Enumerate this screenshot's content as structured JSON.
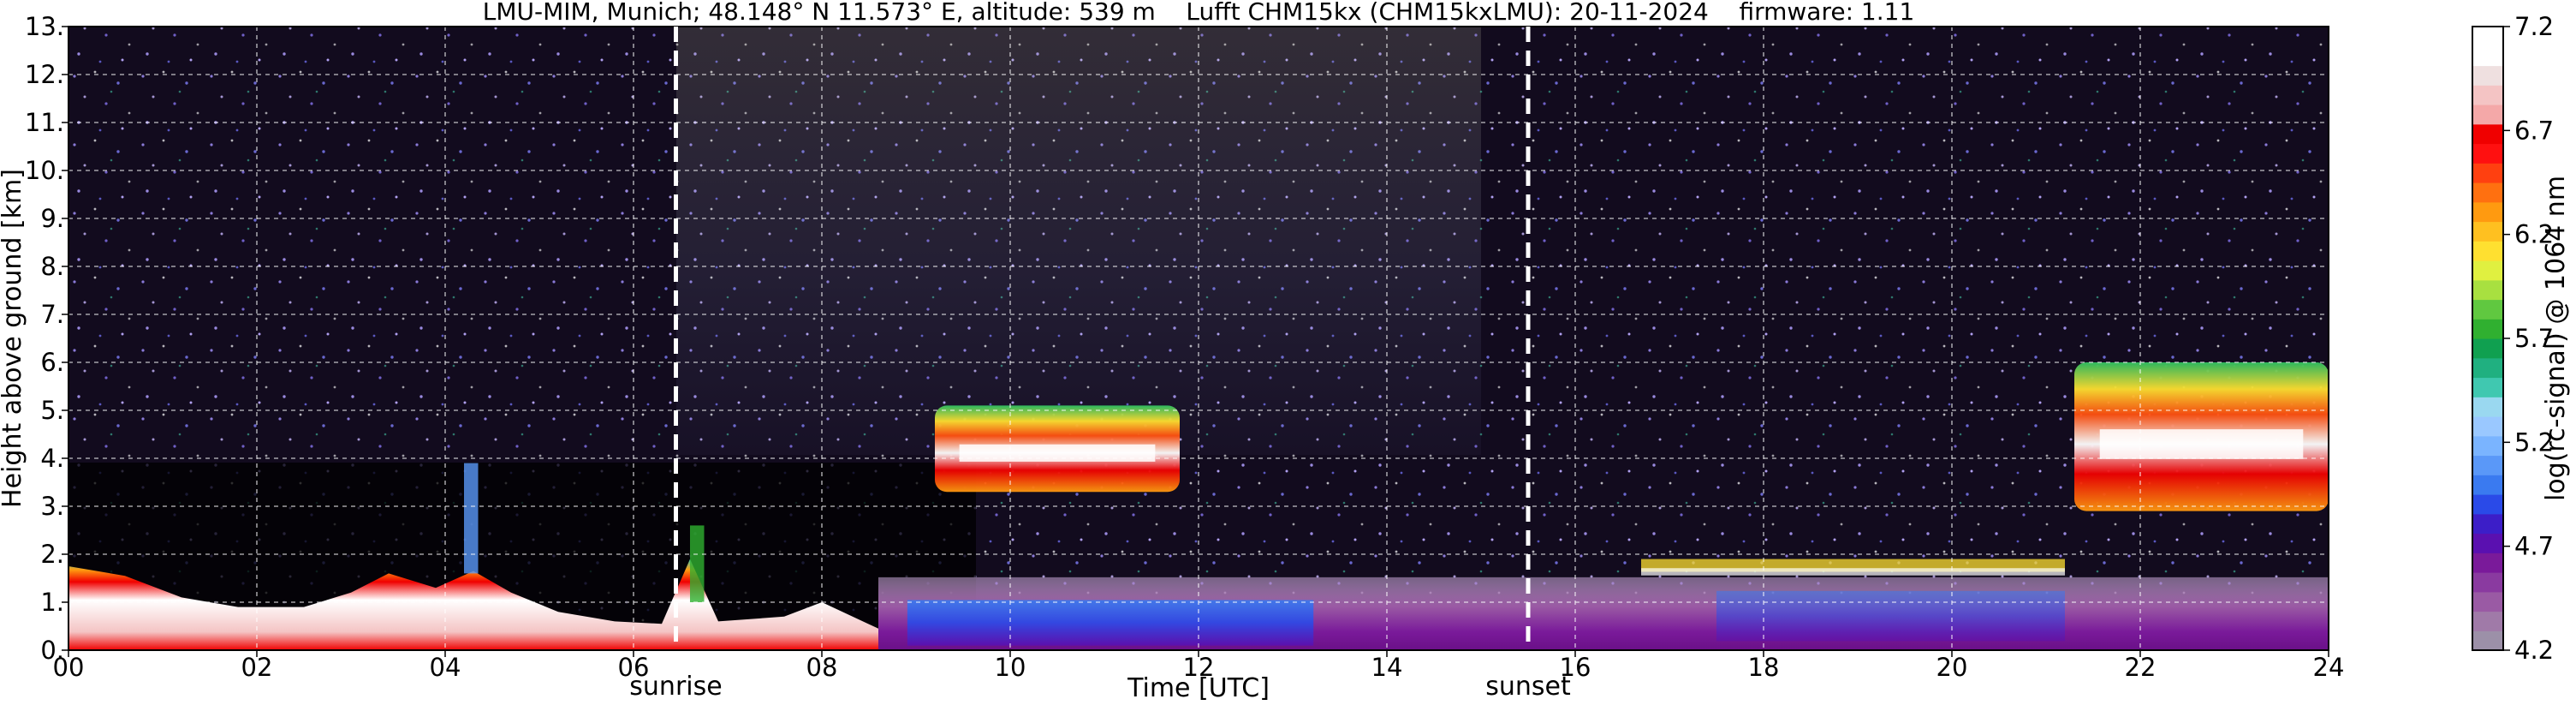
{
  "chart_data": {
    "type": "heatmap",
    "title": "LMU-MIM, Munich; 48.148° N 11.573° E, altitude: 539 m    Lufft CHM15kx (CHM15kxLMU): 20-11-2024    firmware: 1.11",
    "xlabel": "Time [UTC]",
    "ylabel": "Height above ground [km]",
    "colorbar_label": "log(rc-signal) @ 1064 nm",
    "xlim": [
      0,
      24
    ],
    "ylim": [
      0,
      13
    ],
    "clim": [
      4.2,
      7.2
    ],
    "grid": true,
    "x_ticks": [
      "00",
      "02",
      "04",
      "06",
      "08",
      "10",
      "12",
      "14",
      "16",
      "18",
      "20",
      "22",
      "24"
    ],
    "y_ticks": [
      "0.",
      "1.",
      "2.",
      "3.",
      "4.",
      "5.",
      "6.",
      "7.",
      "8.",
      "9.",
      "10.",
      "11.",
      "12.",
      "13."
    ],
    "colorbar_ticks": [
      "4.2",
      "4.7",
      "5.2",
      "5.7",
      "6.2",
      "6.7",
      "7.2"
    ],
    "markers": [
      {
        "label": "sunrise",
        "time": 6.45
      },
      {
        "label": "sunset",
        "time": 15.5
      }
    ],
    "colormap": [
      "#9c90a8",
      "#a07aa8",
      "#9a5aa4",
      "#8a3aa0",
      "#7a1a9a",
      "#5a10b0",
      "#3c1ec8",
      "#2a4ae8",
      "#3a7af0",
      "#5a98f8",
      "#7ab4ff",
      "#9ac8ff",
      "#9ad8f0",
      "#40c8b0",
      "#20b080",
      "#10a050",
      "#30b030",
      "#60c840",
      "#a8e040",
      "#e0f040",
      "#ffe030",
      "#ffc020",
      "#ff9a10",
      "#ff7010",
      "#ff4010",
      "#ff1010",
      "#f00000",
      "#f4a8a8",
      "#f4c4c4",
      "#efe0e0",
      "#ffffff",
      "#ffffff"
    ],
    "features": [
      {
        "name": "boundary layer",
        "t0": 0,
        "t1": 8.6,
        "z0": 0,
        "z1": 1.7
      },
      {
        "name": "cloud layer",
        "t0": 9.2,
        "t1": 11.8,
        "z0": 3.3,
        "z1": 5.1
      },
      {
        "name": "cloud layer",
        "t0": 21.3,
        "t1": 24,
        "z0": 2.9,
        "z1": 6.0
      },
      {
        "name": "aerosol layer",
        "t0": 8.6,
        "t1": 24,
        "z0": 0,
        "z1": 1.9
      }
    ]
  }
}
